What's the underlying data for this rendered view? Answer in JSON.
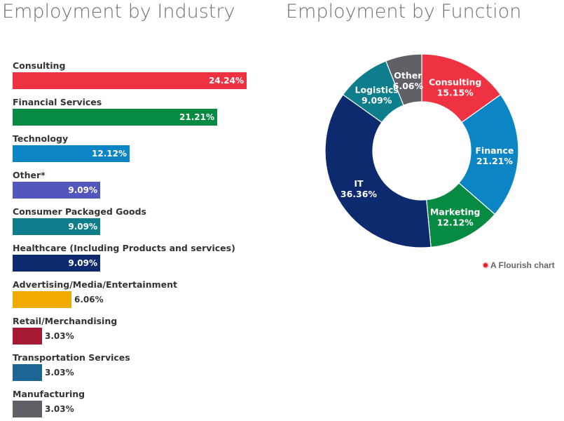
{
  "chart_data": [
    {
      "type": "bar",
      "orientation": "horizontal",
      "title": "Employment by Industry",
      "categories": [
        "Consulting",
        "Financial Services",
        "Technology",
        "Other*",
        "Consumer Packaged Goods",
        "Healthcare (Including Products and services)",
        "Advertising/Media/Entertainment",
        "Retail/Merchandising",
        "Transportation Services",
        "Manufacturing"
      ],
      "values": [
        24.24,
        21.21,
        12.12,
        9.09,
        9.09,
        9.09,
        6.06,
        3.03,
        3.03,
        3.03
      ],
      "value_labels": [
        "24.24%",
        "21.21%",
        "12.12%",
        "9.09%",
        "9.09%",
        "9.09%",
        "6.06%",
        "3.03%",
        "3.03%",
        "3.03%"
      ],
      "colors": [
        "#ee3242",
        "#078a41",
        "#0c85c5",
        "#5357bb",
        "#0e7e8c",
        "#0d2a6e",
        "#f1aa00",
        "#a51a32",
        "#1d6592",
        "#5f6166"
      ],
      "xlim": [
        0,
        24.24
      ],
      "legend": "none",
      "grid": false
    },
    {
      "type": "pie",
      "variant": "donut",
      "title": "Employment by Function",
      "categories": [
        "Consulting",
        "Finance",
        "Marketing",
        "IT",
        "Logistics",
        "Other"
      ],
      "values": [
        15.15,
        21.21,
        12.12,
        36.36,
        9.09,
        6.06
      ],
      "value_labels": [
        "15.15%",
        "21.21%",
        "12.12%",
        "36.36%",
        "9.09%",
        "6.06%"
      ],
      "colors": [
        "#ee3242",
        "#0c85c5",
        "#078a41",
        "#0d2a6e",
        "#0e7e8c",
        "#5f6166"
      ],
      "start": "top",
      "direction": "clockwise",
      "legend": "none"
    }
  ],
  "credit": {
    "text": "A Flourish chart",
    "dot_color": "#e01f25"
  }
}
